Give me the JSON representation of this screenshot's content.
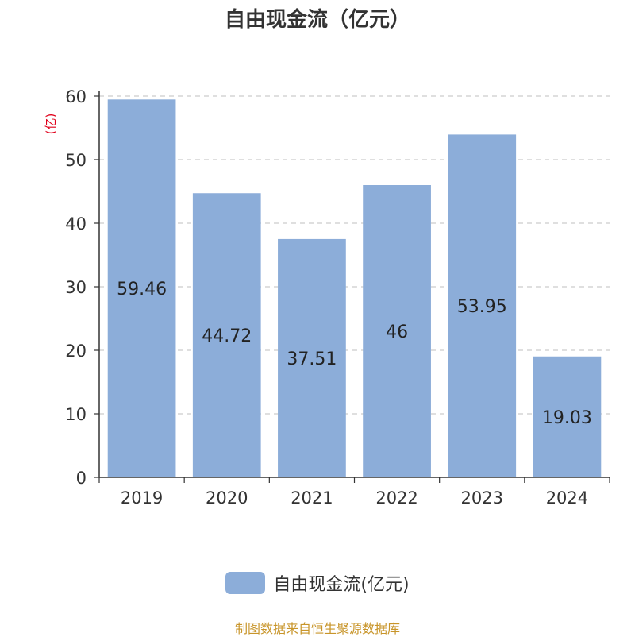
{
  "title": "自由现金流（亿元）",
  "chart_data": {
    "type": "bar",
    "categories": [
      "2019",
      "2020",
      "2021",
      "2022",
      "2023",
      "2024"
    ],
    "series": [
      {
        "name": "自由现金流(亿元)",
        "values": [
          59.46,
          44.72,
          37.51,
          46,
          53.95,
          19.03
        ]
      }
    ],
    "data_labels": [
      "59.46",
      "44.72",
      "37.51",
      "46",
      "53.95",
      "19.03"
    ],
    "ylabel": "(亿)",
    "ylim": [
      0,
      60
    ],
    "yticks": [
      0,
      10,
      20,
      30,
      40,
      50,
      60
    ],
    "grid": true,
    "legend_position": "bottom",
    "bar_color": "#8cadd9",
    "ylabel_color": "#e0001b"
  },
  "legend": {
    "label": "自由现金流(亿元)"
  },
  "source": {
    "text": "制图数据来自恒生聚源数据库",
    "color": "#c8952a"
  }
}
